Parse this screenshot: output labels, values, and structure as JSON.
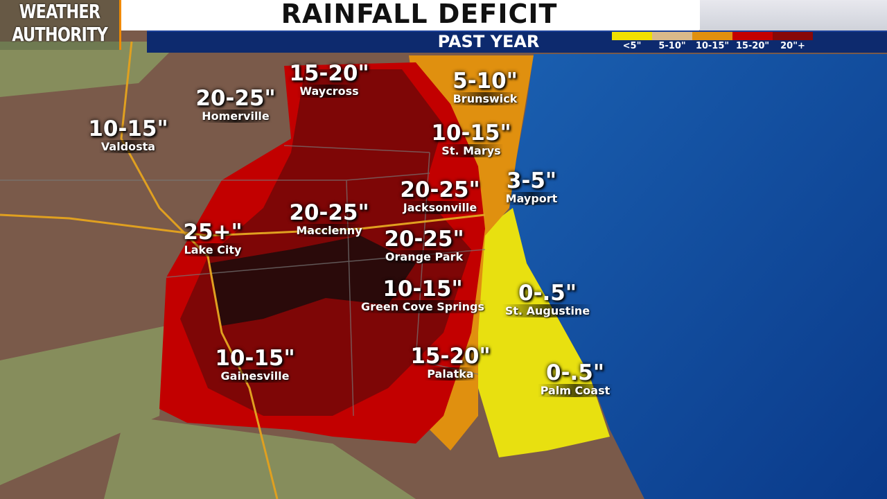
{
  "header": {
    "brand_line1": "WEATHER",
    "brand_line2": "AUTHORITY",
    "title": "RAINFALL DEFICIT",
    "subtitle": "PAST YEAR"
  },
  "legend": [
    {
      "label": "<5\"",
      "color": "#f0e000"
    },
    {
      "label": "5-10\"",
      "color": "#d9b98a"
    },
    {
      "label": "10-15\"",
      "color": "#e0900f"
    },
    {
      "label": "15-20\"",
      "color": "#c40000"
    },
    {
      "label": "20\"+",
      "color": "#880808"
    }
  ],
  "locations": [
    {
      "value": "15-20\"",
      "city": "Waycross"
    },
    {
      "value": "20-25\"",
      "city": "Homerville"
    },
    {
      "value": "10-15\"",
      "city": "Valdosta"
    },
    {
      "value": "5-10\"",
      "city": "Brunswick"
    },
    {
      "value": "10-15\"",
      "city": "St. Marys"
    },
    {
      "value": "3-5\"",
      "city": "Mayport"
    },
    {
      "value": "20-25\"",
      "city": "Jacksonville"
    },
    {
      "value": "20-25\"",
      "city": "Macclenny"
    },
    {
      "value": "25+\"",
      "city": "Lake City"
    },
    {
      "value": "20-25\"",
      "city": "Orange Park"
    },
    {
      "value": "10-15\"",
      "city": "Green Cove Springs"
    },
    {
      "value": "0-.5\"",
      "city": "St. Augustine"
    },
    {
      "value": "10-15\"",
      "city": "Gainesville"
    },
    {
      "value": "15-20\"",
      "city": "Palatka"
    },
    {
      "value": "0-.5\"",
      "city": "Palm Coast"
    }
  ]
}
